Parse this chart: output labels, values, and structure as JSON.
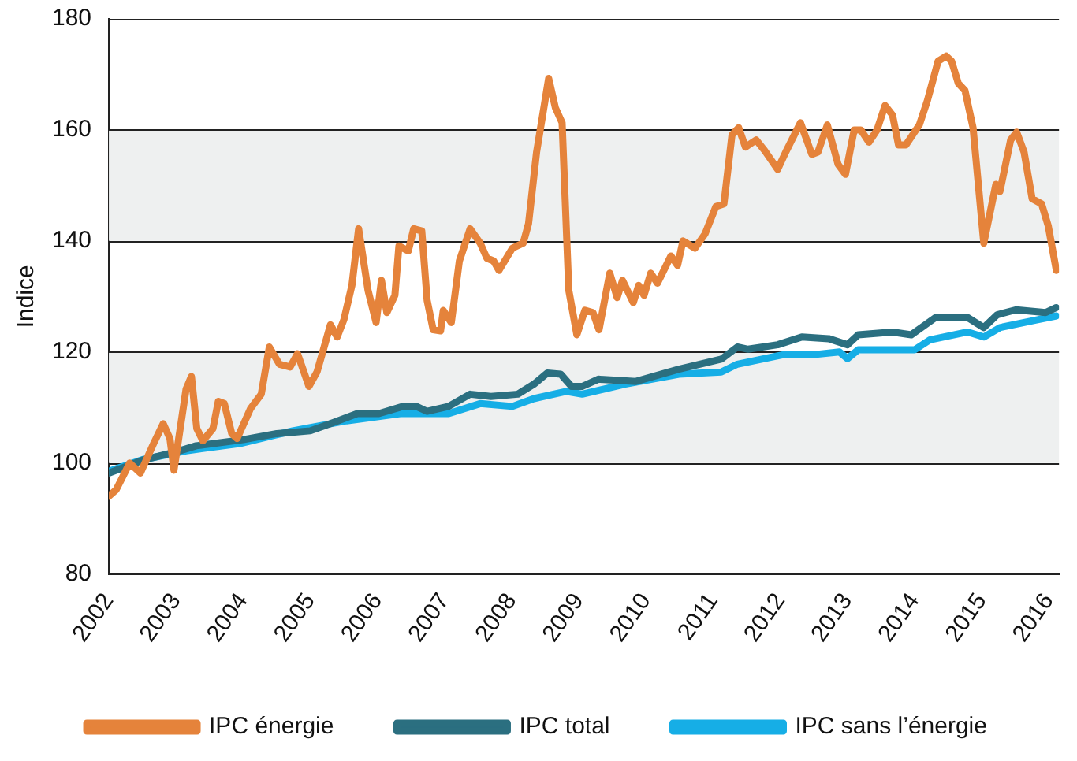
{
  "chart_data": {
    "type": "line",
    "ylabel": "Indice",
    "xlim": [
      2002,
      2016.15
    ],
    "xticks": [
      2002,
      2003,
      2004,
      2005,
      2006,
      2007,
      2008,
      2009,
      2010,
      2011,
      2012,
      2013,
      2014,
      2015,
      2016
    ],
    "ylim": [
      80,
      180
    ],
    "yticks": [
      80,
      100,
      120,
      140,
      160,
      180
    ],
    "grid": "y",
    "legend": "bottom",
    "line_style": "solid",
    "marker": "none",
    "bands": [
      {
        "axis": "y",
        "from": 100,
        "to": 120,
        "color": "#eef0f0"
      },
      {
        "axis": "y",
        "from": 140,
        "to": 160,
        "color": "#eef0f0"
      }
    ],
    "series": [
      {
        "name": "IPC énergie",
        "color": "#e5833b",
        "x": [
          2002.0,
          2002.11,
          2002.31,
          2002.47,
          2002.67,
          2002.81,
          2002.91,
          2002.97,
          2003.15,
          2003.23,
          2003.31,
          2003.4,
          2003.55,
          2003.63,
          2003.72,
          2003.83,
          2003.91,
          2004.11,
          2004.27,
          2004.39,
          2004.54,
          2004.7,
          2004.81,
          2004.98,
          2005.1,
          2005.3,
          2005.4,
          2005.5,
          2005.62,
          2005.72,
          2005.86,
          2005.98,
          2006.06,
          2006.14,
          2006.26,
          2006.32,
          2006.46,
          2006.54,
          2006.66,
          2006.74,
          2006.83,
          2006.94,
          2006.98,
          2007.1,
          2007.22,
          2007.38,
          2007.53,
          2007.63,
          2007.73,
          2007.81,
          2008.01,
          2008.17,
          2008.25,
          2008.37,
          2008.55,
          2008.65,
          2008.75,
          2008.85,
          2008.97,
          2009.09,
          2009.21,
          2009.3,
          2009.46,
          2009.57,
          2009.65,
          2009.81,
          2009.89,
          2009.97,
          2010.07,
          2010.17,
          2010.37,
          2010.47,
          2010.55,
          2010.73,
          2010.88,
          2011.04,
          2011.16,
          2011.28,
          2011.38,
          2011.48,
          2011.64,
          2011.76,
          2011.96,
          2012.08,
          2012.3,
          2012.47,
          2012.56,
          2012.7,
          2012.86,
          2012.97,
          2013.1,
          2013.2,
          2013.32,
          2013.44,
          2013.56,
          2013.67,
          2013.76,
          2013.87,
          2014.07,
          2014.19,
          2014.35,
          2014.47,
          2014.55,
          2014.65,
          2014.75,
          2014.87,
          2015.03,
          2015.21,
          2015.27,
          2015.43,
          2015.52,
          2015.63,
          2015.75,
          2015.89,
          2015.99,
          2016.11
        ],
        "values": [
          94,
          95.2,
          100,
          98.2,
          103.6,
          107.1,
          104.4,
          98.7,
          113.3,
          115.6,
          106.2,
          104,
          106.2,
          111.1,
          110.7,
          105.3,
          104.4,
          109.8,
          112.4,
          120.9,
          117.8,
          117.3,
          119.7,
          113.8,
          116.4,
          124.9,
          122.7,
          125.8,
          132,
          142.2,
          131.1,
          125.3,
          132.9,
          127.1,
          130.2,
          139.1,
          138.2,
          142.2,
          141.8,
          129.3,
          124,
          123.8,
          127.5,
          125.3,
          136.4,
          142.2,
          139.6,
          136.9,
          136.4,
          134.7,
          138.7,
          139.6,
          143.1,
          156,
          169.3,
          164,
          161.3,
          131.1,
          123.1,
          127.5,
          127.1,
          124,
          134.2,
          129.8,
          132.9,
          128.9,
          132,
          130.2,
          134.2,
          132.4,
          137.3,
          135.6,
          140,
          138.7,
          141.3,
          146.2,
          146.7,
          159.1,
          160.4,
          156.9,
          158.2,
          156.4,
          152.9,
          156,
          161.3,
          155.6,
          156,
          160.9,
          153.8,
          152,
          160,
          160,
          157.8,
          160,
          164.4,
          162.7,
          157.3,
          157.3,
          160.9,
          165.3,
          172.4,
          173.3,
          172.4,
          168.4,
          167.1,
          160.4,
          139.6,
          150.2,
          148.9,
          158.2,
          159.6,
          156,
          147.6,
          146.7,
          142.7,
          134.7
        ]
      },
      {
        "name": "IPC total",
        "color": "#2b6f80",
        "x": [
          2002.0,
          2002.5,
          2003.0,
          2003.3,
          2004.0,
          2004.5,
          2005.0,
          2005.3,
          2005.7,
          2006.02,
          2006.38,
          2006.58,
          2006.74,
          2007.06,
          2007.38,
          2007.69,
          2008.09,
          2008.33,
          2008.53,
          2008.73,
          2008.89,
          2009.05,
          2009.29,
          2009.85,
          2010.49,
          2011.12,
          2011.36,
          2011.52,
          2011.96,
          2012.32,
          2012.72,
          2013.0,
          2013.16,
          2013.67,
          2013.95,
          2014.31,
          2014.79,
          2015.03,
          2015.23,
          2015.51,
          2015.95,
          2016.11
        ],
        "values": [
          98.2,
          100.5,
          102,
          103.1,
          104.2,
          105.3,
          105.8,
          107.1,
          108.9,
          108.9,
          110.2,
          110.2,
          109.3,
          110.2,
          112.4,
          112,
          112.4,
          114.2,
          116.2,
          116,
          113.8,
          113.8,
          115.1,
          114.7,
          116.9,
          118.7,
          120.9,
          120.5,
          121.3,
          122.7,
          122.4,
          121.3,
          123.1,
          123.6,
          123.1,
          126.2,
          126.2,
          124.4,
          126.7,
          127.6,
          127.1,
          128
        ]
      },
      {
        "name": "IPC sans l’énergie",
        "color": "#16aee6",
        "x": [
          2002.0,
          2002.5,
          2003.15,
          2003.95,
          2004.74,
          2005.54,
          2006.34,
          2007.06,
          2007.53,
          2008.01,
          2008.33,
          2008.81,
          2009.05,
          2009.69,
          2010.49,
          2011.12,
          2011.36,
          2012.08,
          2012.56,
          2012.88,
          2013.0,
          2013.16,
          2014.0,
          2014.23,
          2014.79,
          2015.03,
          2015.27,
          2015.83,
          2016.11
        ],
        "values": [
          98.5,
          100.6,
          102.2,
          103.5,
          105.8,
          107.6,
          108.9,
          108.9,
          110.7,
          110.2,
          111.6,
          112.9,
          112.4,
          114.2,
          116,
          116.4,
          117.8,
          119.6,
          119.6,
          120,
          118.8,
          120.4,
          120.4,
          122.2,
          123.6,
          122.7,
          124.4,
          125.8,
          126.5
        ]
      }
    ]
  }
}
